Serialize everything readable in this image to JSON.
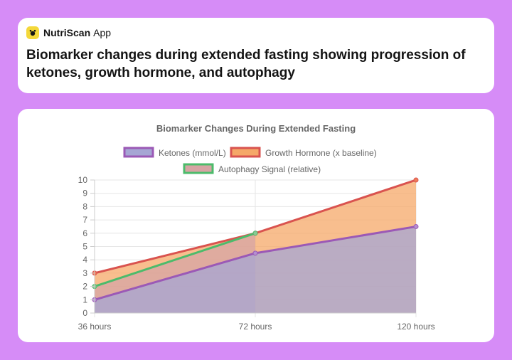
{
  "app": {
    "name": "NutriScan",
    "suffix": "App"
  },
  "header": {
    "title": "Biomarker changes during extended fasting showing progression of ketones, growth hormone, and autophagy"
  },
  "chart_data": {
    "type": "area",
    "title": "Biomarker Changes During Extended Fasting",
    "xlabel": "",
    "ylabel": "",
    "categories": [
      "36 hours",
      "72 hours",
      "120 hours"
    ],
    "ylim": [
      0,
      10
    ],
    "yticks": [
      0,
      1,
      2,
      3,
      4,
      5,
      6,
      7,
      8,
      9,
      10
    ],
    "grid": true,
    "legend_position": "top",
    "series": [
      {
        "name": "Ketones (mmol/L)",
        "values": [
          1,
          4.5,
          6.5
        ],
        "line_color": "#9b59b6",
        "fill_color": "#a6a6d4",
        "point_color": "#b58fd0"
      },
      {
        "name": "Growth Hormone (x baseline)",
        "values": [
          3,
          6,
          10
        ],
        "line_color": "#d9534f",
        "fill_color": "#f5a868",
        "point_color": "#ee7b58"
      },
      {
        "name": "Autophagy Signal (relative)",
        "values": [
          2,
          6,
          null
        ],
        "line_color": "#4cbb6b",
        "fill_color": "#d7a4a4",
        "point_color": "#8bc995"
      }
    ]
  }
}
